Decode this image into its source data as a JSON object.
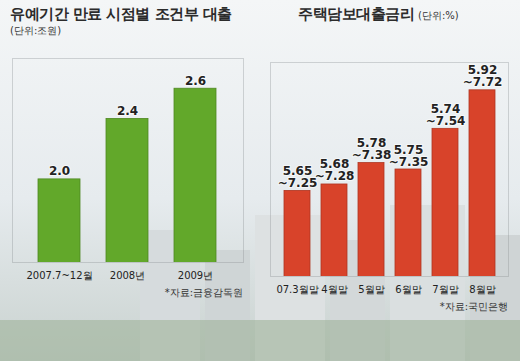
{
  "chart_data": [
    {
      "type": "bar",
      "title": "유예기간 만료 시점별 조건부 대출",
      "subtitle": "(단위:조원)",
      "source": "*자료:금융감독원",
      "categories": [
        "2007.7~12월",
        "2008년",
        "2009년"
      ],
      "values": [
        2.0,
        2.4,
        2.6
      ],
      "value_labels": [
        "2.0",
        "2.4",
        "2.6"
      ],
      "color": "#62a82a",
      "ylim": [
        1.45,
        2.8
      ],
      "yticks": [],
      "tick_labels": "x",
      "data_labels": true
    },
    {
      "type": "bar",
      "title": "주택담보대출금리",
      "subtitle": "(단위:%)",
      "source": "*자료:국민은행",
      "categories": [
        "07.3월말",
        "4월말",
        "5월말",
        "6월말",
        "7월말",
        "8월말"
      ],
      "values_low": [
        5.65,
        5.68,
        5.78,
        5.75,
        5.74,
        5.92
      ],
      "values": [
        7.25,
        7.28,
        7.38,
        7.35,
        7.54,
        7.72
      ],
      "value_labels": [
        "~7.25",
        "~7.28",
        "~7.38",
        "~7.35",
        "~7.54",
        "~7.72"
      ],
      "color": "#d8432a",
      "ylim": [
        6.85,
        7.85
      ],
      "yticks": [],
      "tick_labels": "x",
      "data_labels": true
    }
  ]
}
